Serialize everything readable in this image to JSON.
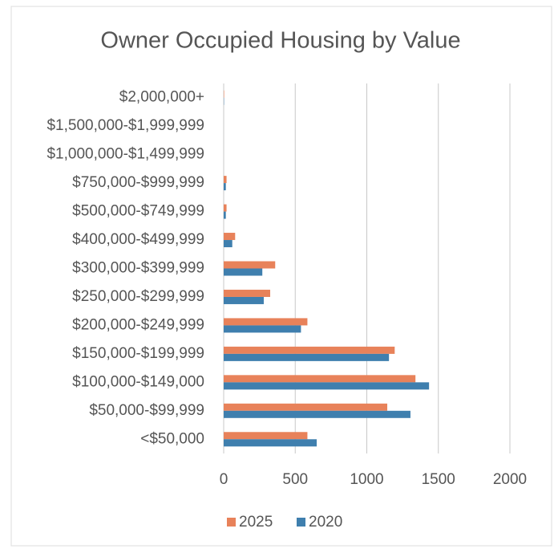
{
  "chart_data": {
    "type": "bar",
    "orientation": "horizontal",
    "title": "Owner Occupied Housing by Value",
    "categories": [
      "<$50,000",
      "$50,000-$99,999",
      "$100,000-$149,000",
      "$150,000-$199,999",
      "$200,000-$249,999",
      "$250,000-$299,999",
      "$300,000-$399,999",
      "$400,000-$499,999",
      "$500,000-$749,999",
      "$750,000-$999,999",
      "$1,000,000-$1,499,999",
      "$1,500,000-$1,999,999",
      "$2,000,000+"
    ],
    "series": [
      {
        "name": "2025",
        "color": "#e8825a",
        "values": [
          585,
          1143,
          1340,
          1195,
          585,
          325,
          360,
          80,
          20,
          20,
          0,
          0,
          3
        ]
      },
      {
        "name": "2020",
        "color": "#3f7fae",
        "values": [
          650,
          1305,
          1435,
          1155,
          540,
          280,
          270,
          60,
          15,
          15,
          0,
          0,
          2
        ]
      }
    ],
    "xlim": [
      0,
      2000
    ],
    "xticks": [
      0,
      500,
      1000,
      1500,
      2000
    ],
    "grid": true,
    "legend": "bottom"
  }
}
